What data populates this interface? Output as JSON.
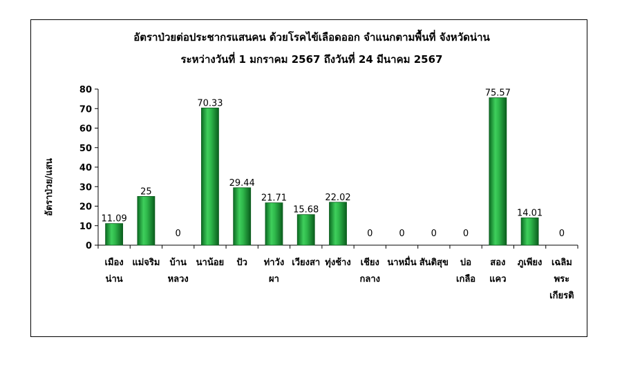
{
  "chart_data": {
    "type": "bar",
    "title": "อัตราป่วยต่อประชากรแสนคน ด้วยโรคไข้เลือดออก  จำแนกตามพื้นที่   จังหวัดน่าน",
    "subtitle": "ระหว่างวันที่   1 มกราคม 2567 ถึงวันที่   24 มีนาคม 2567",
    "ylabel": "อัตราป่วย/แสน",
    "xlabel": "",
    "ylim": [
      0,
      80
    ],
    "yticks": [
      0,
      10,
      20,
      30,
      40,
      50,
      60,
      70,
      80
    ],
    "grid": false,
    "legend": "none",
    "bar_color": "#1f9e3a",
    "categories": [
      [
        "เมือง",
        "น่าน"
      ],
      [
        "แม่จริม"
      ],
      [
        "บ้าน",
        "หลวง"
      ],
      [
        "นาน้อย"
      ],
      [
        "ปัว"
      ],
      [
        "ท่าวัง",
        "ผา"
      ],
      [
        "เวียงสา"
      ],
      [
        "ทุ่งช้าง"
      ],
      [
        "เชียง",
        "กลาง"
      ],
      [
        "นาหมื่น"
      ],
      [
        "สันติสุข"
      ],
      [
        "บ่อ",
        "เกลือ"
      ],
      [
        "สอง",
        "แคว"
      ],
      [
        "ภูเพียง"
      ],
      [
        "เฉลิม",
        "พระ",
        "เกียรติ"
      ]
    ],
    "values": [
      11.09,
      25,
      0,
      70.33,
      29.44,
      21.71,
      15.68,
      22.02,
      0,
      0,
      0,
      0,
      75.57,
      14.01,
      0
    ],
    "data_labels": [
      "11.09",
      "25",
      "0",
      "70.33",
      "29.44",
      "21.71",
      "15.68",
      "22.02",
      "0",
      "0",
      "0",
      "0",
      "75.57",
      "14.01",
      "0"
    ]
  }
}
